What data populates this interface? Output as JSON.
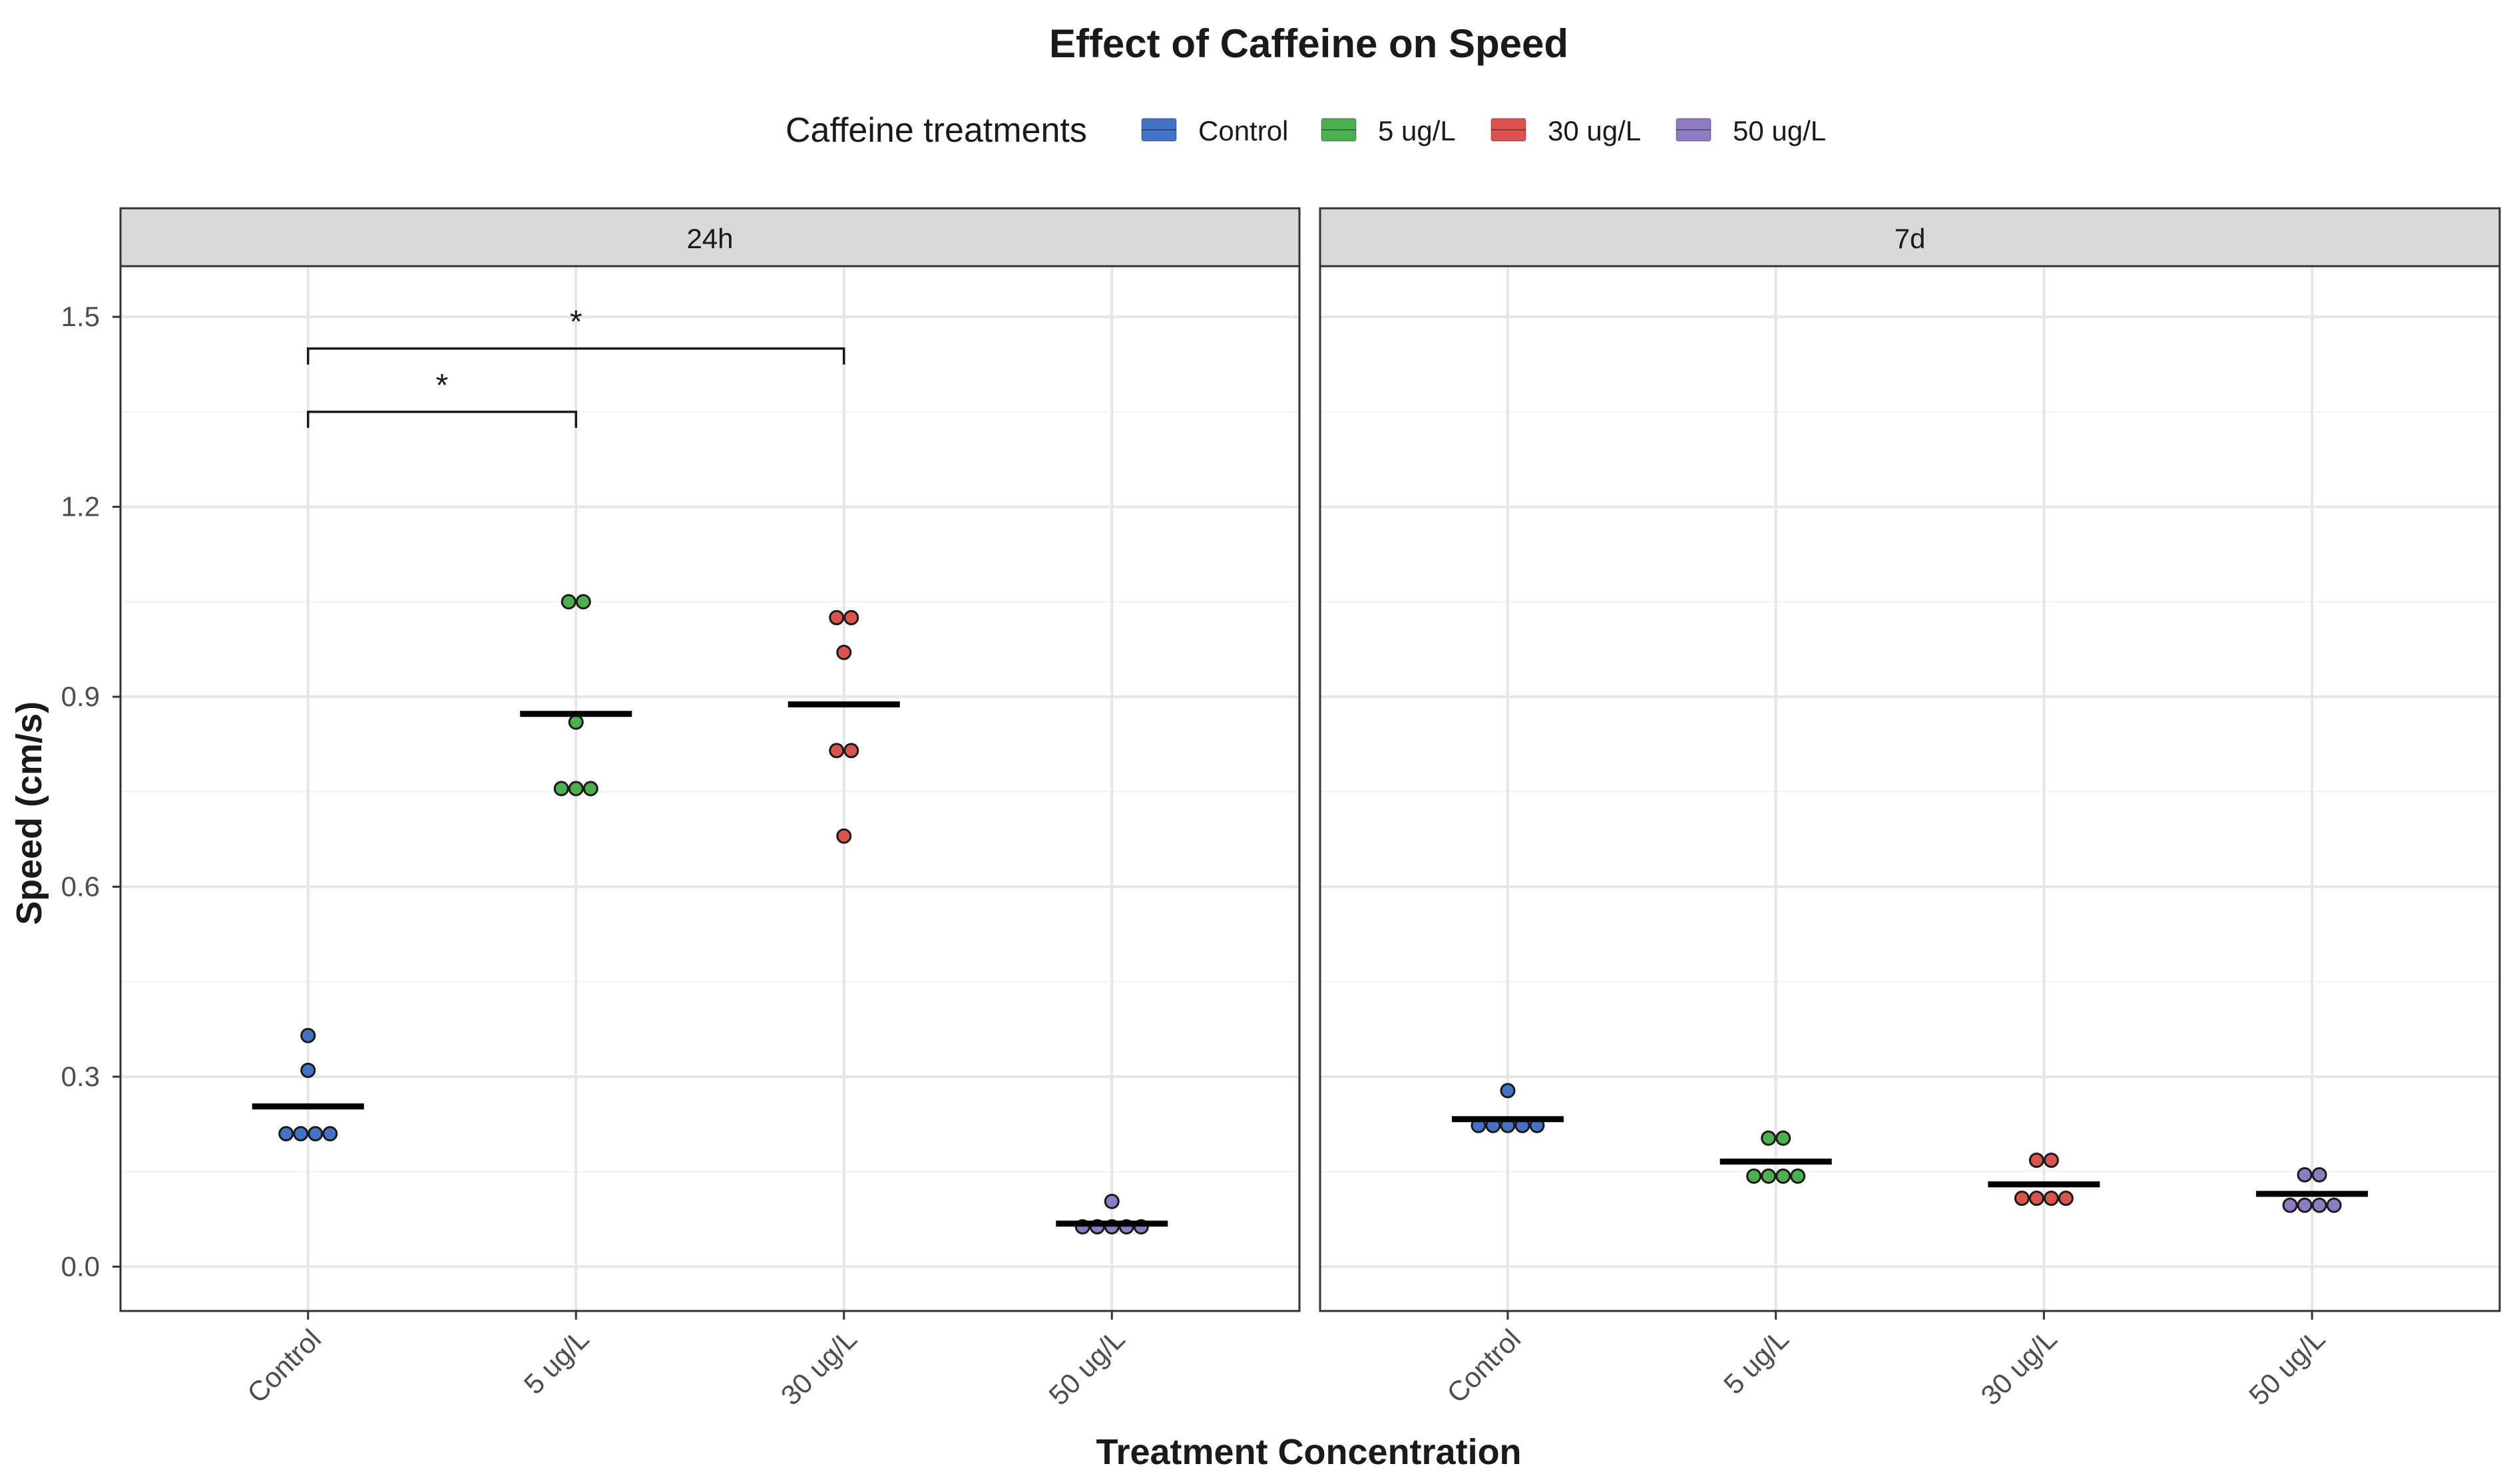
{
  "chart_data": {
    "type": "scatter",
    "title": "Effect of Caffeine on Speed",
    "xlabel": "Treatment Concentration",
    "ylabel": "Speed (cm/s)",
    "ylim": [
      -0.07,
      1.58
    ],
    "yticks": [
      0.0,
      0.3,
      0.6,
      0.9,
      1.2,
      1.5
    ],
    "ytick_labels": [
      "0.0",
      "0.3",
      "0.6",
      "0.9",
      "1.2",
      "1.5"
    ],
    "categories": [
      "Control",
      "5 ug/L",
      "30 ug/L",
      "50 ug/L"
    ],
    "grid": true,
    "legend": {
      "title": "Caffeine treatments",
      "position": "top",
      "items": [
        {
          "label": "Control",
          "color": "#4472C4"
        },
        {
          "label": "5 ug/L",
          "color": "#4CAF50"
        },
        {
          "label": "30 ug/L",
          "color": "#D9534F"
        },
        {
          "label": "50 ug/L",
          "color": "#8E7CC3"
        }
      ]
    },
    "panels": [
      {
        "label": "24h",
        "groups": [
          {
            "category": "Control",
            "points": [
              0.21,
              0.21,
              0.21,
              0.21,
              0.31,
              0.365
            ],
            "mean": 0.253
          },
          {
            "category": "5 ug/L",
            "points": [
              0.755,
              0.755,
              0.755,
              0.86,
              1.05,
              1.05
            ],
            "mean": 0.873
          },
          {
            "category": "30 ug/L",
            "points": [
              0.68,
              0.815,
              0.815,
              0.97,
              1.025,
              1.025
            ],
            "mean": 0.888
          },
          {
            "category": "50 ug/L",
            "points": [
              0.063,
              0.063,
              0.063,
              0.063,
              0.063,
              0.103
            ],
            "mean": 0.068
          }
        ],
        "significance": [
          {
            "from": "Control",
            "to": "5 ug/L",
            "y": 1.35,
            "label": "*"
          },
          {
            "from": "Control",
            "to": "30 ug/L",
            "y": 1.45,
            "label": "*"
          }
        ]
      },
      {
        "label": "7d",
        "groups": [
          {
            "category": "Control",
            "points": [
              0.223,
              0.223,
              0.223,
              0.223,
              0.223,
              0.278
            ],
            "mean": 0.233
          },
          {
            "category": "5 ug/L",
            "points": [
              0.143,
              0.143,
              0.143,
              0.143,
              0.203,
              0.203
            ],
            "mean": 0.166
          },
          {
            "category": "30 ug/L",
            "points": [
              0.108,
              0.108,
              0.108,
              0.108,
              0.168,
              0.168
            ],
            "mean": 0.13
          },
          {
            "category": "50 ug/L",
            "points": [
              0.097,
              0.097,
              0.097,
              0.097,
              0.145,
              0.145
            ],
            "mean": 0.115
          }
        ],
        "significance": []
      }
    ]
  }
}
